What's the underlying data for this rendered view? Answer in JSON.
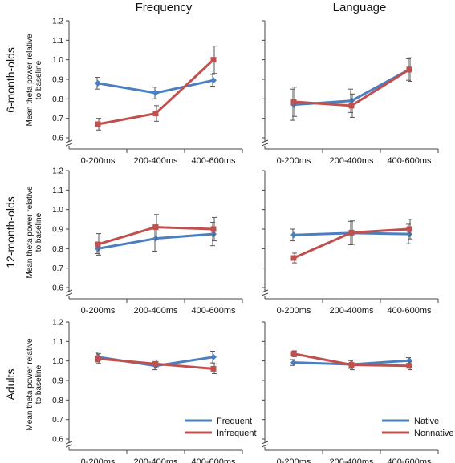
{
  "columns": [
    "Frequency",
    "Language"
  ],
  "rows": [
    "6-month-olds",
    "12-month-olds",
    "Adults"
  ],
  "ylabel": "Mean theta power relative to baseline",
  "categories": [
    "0-200ms",
    "200-400ms",
    "400-600ms"
  ],
  "legends": {
    "frequency": [
      "Frequent",
      "Infrequent"
    ],
    "language": [
      "Native",
      "Nonnative"
    ]
  },
  "colors": {
    "blue": "#4a7fc1",
    "red": "#c0504d",
    "errorbar": "#555555"
  },
  "chart_data": [
    {
      "type": "line",
      "row": "6-month-olds",
      "column": "Frequency",
      "categories": [
        "0-200ms",
        "200-400ms",
        "400-600ms"
      ],
      "ylim": [
        0.6,
        1.2
      ],
      "yticks": [
        "0.6",
        "0.7",
        "0.8",
        "0.9",
        "1.0",
        "1.1",
        "1.2"
      ],
      "series": [
        {
          "color": "blue",
          "values": [
            0.88,
            0.83,
            0.895
          ],
          "errors": [
            0.03,
            0.03,
            0.03
          ]
        },
        {
          "color": "red",
          "values": [
            0.67,
            0.725,
            1.0
          ],
          "errors": [
            0.03,
            0.04,
            0.07
          ]
        }
      ]
    },
    {
      "type": "line",
      "row": "6-month-olds",
      "column": "Language",
      "categories": [
        "0-200ms",
        "200-400ms",
        "400-600ms"
      ],
      "ylim": [
        0.6,
        1.2
      ],
      "yticks": [],
      "series": [
        {
          "color": "blue",
          "values": [
            0.77,
            0.79,
            0.95
          ],
          "errors": [
            0.08,
            0.06,
            0.055
          ]
        },
        {
          "color": "red",
          "values": [
            0.785,
            0.765,
            0.95
          ],
          "errors": [
            0.075,
            0.06,
            0.06
          ]
        }
      ]
    },
    {
      "type": "line",
      "row": "12-month-olds",
      "column": "Frequency",
      "categories": [
        "0-200ms",
        "200-400ms",
        "400-600ms"
      ],
      "ylim": [
        0.6,
        1.2
      ],
      "yticks": [
        "0.6",
        "0.7",
        "0.8",
        "0.9",
        "1.0",
        "1.1",
        "1.2"
      ],
      "series": [
        {
          "color": "blue",
          "values": [
            0.8,
            0.852,
            0.875
          ],
          "errors": [
            0.025,
            0.065,
            0.06
          ]
        },
        {
          "color": "red",
          "values": [
            0.822,
            0.91,
            0.9
          ],
          "errors": [
            0.055,
            0.065,
            0.06
          ]
        }
      ]
    },
    {
      "type": "line",
      "row": "12-month-olds",
      "column": "Language",
      "categories": [
        "0-200ms",
        "200-400ms",
        "400-600ms"
      ],
      "ylim": [
        0.6,
        1.2
      ],
      "yticks": [],
      "series": [
        {
          "color": "blue",
          "values": [
            0.87,
            0.88,
            0.875
          ],
          "errors": [
            0.03,
            0.06,
            0.05
          ]
        },
        {
          "color": "red",
          "values": [
            0.752,
            0.882,
            0.9
          ],
          "errors": [
            0.025,
            0.06,
            0.05
          ]
        }
      ]
    },
    {
      "type": "line",
      "row": "Adults",
      "column": "Frequency",
      "categories": [
        "0-200ms",
        "200-400ms",
        "400-600ms"
      ],
      "ylim": [
        0.6,
        1.2
      ],
      "yticks": [
        "0.6",
        "0.7",
        "0.8",
        "0.9",
        "1.0",
        "1.1",
        "1.2"
      ],
      "series": [
        {
          "name": "Frequent",
          "color": "blue",
          "values": [
            1.02,
            0.975,
            1.02
          ],
          "errors": [
            0.025,
            0.02,
            0.03
          ]
        },
        {
          "name": "Infrequent",
          "color": "red",
          "values": [
            1.012,
            0.985,
            0.96
          ],
          "errors": [
            0.025,
            0.02,
            0.025
          ]
        }
      ]
    },
    {
      "type": "line",
      "row": "Adults",
      "column": "Language",
      "categories": [
        "0-200ms",
        "200-400ms",
        "400-600ms"
      ],
      "ylim": [
        0.6,
        1.2
      ],
      "yticks": [],
      "series": [
        {
          "name": "Native",
          "color": "blue",
          "values": [
            0.992,
            0.982,
            1.002
          ],
          "errors": [
            0.015,
            0.02,
            0.015
          ]
        },
        {
          "name": "Nonnative",
          "color": "red",
          "values": [
            1.037,
            0.98,
            0.975
          ],
          "errors": [
            0.015,
            0.025,
            0.02
          ]
        }
      ]
    }
  ]
}
